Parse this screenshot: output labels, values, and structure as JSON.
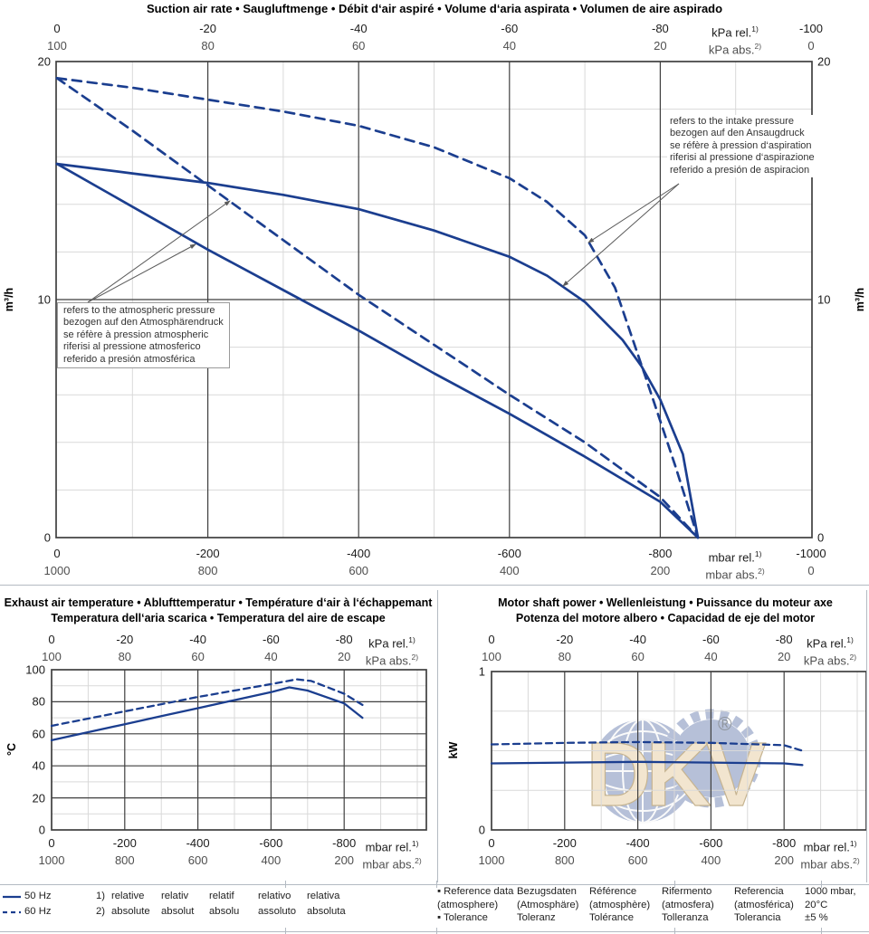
{
  "page": {
    "colors": {
      "curve": "#1b3e8f",
      "grid_light": "#d9d9d9",
      "grid_dark": "#3f3f3f",
      "separator": "#b3bac2",
      "arrow": "#5a5a5a",
      "watermark_blue": "#b6c0d8",
      "watermark_cream": "#f2e5cf",
      "watermark_outline": "#c6b491",
      "registered_gray": "#8f959d"
    },
    "legend": {
      "frequencies": [
        {
          "style": "solid",
          "label": "50 Hz"
        },
        {
          "style": "dashed",
          "label": "60 Hz"
        }
      ],
      "footnotes": [
        {
          "num": "1)",
          "terms": [
            "relative",
            "relativ",
            "relatif",
            "relativo",
            "relativa"
          ]
        },
        {
          "num": "2)",
          "terms": [
            "absolute",
            "absolut",
            "absolu",
            "assoluto",
            "absoluta"
          ]
        }
      ],
      "reference_columns": [
        {
          "bullet": true,
          "lines": [
            "Reference data",
            "(atmosphere)",
            "Tolerance"
          ]
        },
        {
          "bullet": false,
          "lines": [
            "Bezugsdaten",
            "(Atmosphäre)",
            "Toleranz"
          ]
        },
        {
          "bullet": false,
          "lines": [
            "Référence",
            "(atmosphère)",
            "Tolérance"
          ]
        },
        {
          "bullet": false,
          "lines": [
            "Rifermento",
            "(atmosfera)",
            "Tolleranza"
          ]
        },
        {
          "bullet": false,
          "lines": [
            "Referencia",
            "(atmosférica)",
            "Tolerancia"
          ]
        },
        {
          "bullet": false,
          "lines": [
            "1000 mbar,",
            "20°C",
            "±5 %"
          ]
        }
      ]
    },
    "watermark": {
      "text": "DKV",
      "registered": "®"
    }
  },
  "chart_data": [
    {
      "type": "line",
      "title": "Suction air rate  •  Saugluftmenge  •  Débit d‘air aspiré  •  Volume d‘aria aspirata  •  Volumen de aire aspirado",
      "title2": "",
      "x_axis_top": {
        "ticks": [
          0,
          -20,
          -40,
          -60,
          -80
        ],
        "end": -100,
        "unit": "kPa rel.",
        "unit_sup": "1)"
      },
      "x_axis_top_abs": {
        "ticks": [
          100,
          80,
          60,
          40,
          20
        ],
        "end": 0,
        "unit": "kPa abs.",
        "unit_sup": "2)"
      },
      "x_axis_bottom": {
        "ticks": [
          0,
          -200,
          -400,
          -600,
          -800
        ],
        "end": -1000,
        "unit": "mbar rel.",
        "unit_sup": "1)"
      },
      "x_axis_bottom_abs": {
        "ticks": [
          1000,
          800,
          600,
          400,
          200
        ],
        "end": 0,
        "unit": "mbar abs.",
        "unit_sup": "2)"
      },
      "y_axis": {
        "label": "m³/h",
        "ticks": [
          20,
          10,
          0
        ],
        "min": 0,
        "max": 20,
        "dual_side": true
      },
      "x_range_mbar": [
        0,
        -1000
      ],
      "series": [
        {
          "name": "50 Hz — refers to the atmospheric pressure",
          "style": "solid",
          "points": [
            [
              0,
              15.7
            ],
            [
              -100,
              13.9
            ],
            [
              -200,
              12.1
            ],
            [
              -300,
              10.4
            ],
            [
              -400,
              8.7
            ],
            [
              -500,
              6.9
            ],
            [
              -600,
              5.2
            ],
            [
              -700,
              3.4
            ],
            [
              -800,
              1.5
            ],
            [
              -850,
              0
            ]
          ]
        },
        {
          "name": "50 Hz — refers to the intake pressure",
          "style": "solid",
          "points": [
            [
              0,
              15.7
            ],
            [
              -100,
              15.3
            ],
            [
              -200,
              14.9
            ],
            [
              -300,
              14.4
            ],
            [
              -400,
              13.8
            ],
            [
              -500,
              12.9
            ],
            [
              -600,
              11.8
            ],
            [
              -650,
              11.0
            ],
            [
              -700,
              9.9
            ],
            [
              -750,
              8.3
            ],
            [
              -775,
              7.2
            ],
            [
              -800,
              5.8
            ],
            [
              -830,
              3.5
            ],
            [
              -850,
              0
            ]
          ]
        },
        {
          "name": "60 Hz — refers to the atmospheric pressure",
          "style": "dashed",
          "points": [
            [
              0,
              19.3
            ],
            [
              -100,
              17.1
            ],
            [
              -200,
              14.8
            ],
            [
              -300,
              12.5
            ],
            [
              -400,
              10.2
            ],
            [
              -500,
              8.1
            ],
            [
              -600,
              6.0
            ],
            [
              -700,
              4.0
            ],
            [
              -800,
              1.7
            ],
            [
              -850,
              0
            ]
          ]
        },
        {
          "name": "60 Hz — refers to the intake pressure",
          "style": "dashed",
          "points": [
            [
              0,
              19.3
            ],
            [
              -100,
              18.9
            ],
            [
              -200,
              18.4
            ],
            [
              -300,
              17.9
            ],
            [
              -400,
              17.3
            ],
            [
              -500,
              16.4
            ],
            [
              -600,
              15.1
            ],
            [
              -650,
              14.1
            ],
            [
              -700,
              12.7
            ],
            [
              -740,
              10.5
            ],
            [
              -780,
              6.8
            ],
            [
              -820,
              3.0
            ],
            [
              -850,
              0
            ]
          ]
        }
      ],
      "annotations": [
        {
          "id": "intake",
          "lines": [
            "refers to the intake pressure",
            "bezogen auf den Ansaugdruck",
            "se réfère à pression d‘aspiration",
            "riferisi al pressione d‘aspirazione",
            "referido a presión de aspiracion"
          ]
        },
        {
          "id": "atmospheric",
          "lines": [
            "refers to the atmospheric pressure",
            "bezogen auf den Atmosphärendruck",
            "se réfère à pression atmospheric",
            "riferisi al pressione atmosferico",
            "referido a presión atmosférica"
          ]
        }
      ]
    },
    {
      "type": "line",
      "title": "Exhaust air temperature  •  Ablufttemperatur  •  Température d‘air à l‘échappemant",
      "title2": "Temperatura dell‘aria scarica  •  Temperatura del aire de escape",
      "x_axis_top": {
        "ticks": [
          0,
          -20,
          -40,
          -60,
          -80
        ],
        "end": null,
        "unit": "kPa rel.",
        "unit_sup": "1)"
      },
      "x_axis_top_abs": {
        "ticks": [
          100,
          80,
          60,
          40,
          20
        ],
        "end": null,
        "unit": "kPa abs.",
        "unit_sup": "2)"
      },
      "x_axis_bottom": {
        "ticks": [
          0,
          -200,
          -400,
          -600,
          -800
        ],
        "end": null,
        "unit": "mbar rel.",
        "unit_sup": "1)"
      },
      "x_axis_bottom_abs": {
        "ticks": [
          1000,
          800,
          600,
          400,
          200
        ],
        "end": null,
        "unit": "mbar abs.",
        "unit_sup": "2)"
      },
      "y_axis": {
        "label": "°C",
        "ticks": [
          100,
          80,
          60,
          40,
          20,
          0
        ],
        "min": 0,
        "max": 100,
        "dual_side": false
      },
      "x_range_mbar": [
        0,
        -1000
      ],
      "series": [
        {
          "name": "50 Hz",
          "style": "solid",
          "points": [
            [
              0,
              56
            ],
            [
              -100,
              61
            ],
            [
              -200,
              66
            ],
            [
              -300,
              71
            ],
            [
              -400,
              76
            ],
            [
              -500,
              81
            ],
            [
              -600,
              86
            ],
            [
              -650,
              89
            ],
            [
              -700,
              87
            ],
            [
              -800,
              79
            ],
            [
              -850,
              70
            ]
          ]
        },
        {
          "name": "60 Hz",
          "style": "dashed",
          "points": [
            [
              0,
              65
            ],
            [
              -100,
              69.5
            ],
            [
              -200,
              74
            ],
            [
              -300,
              78.5
            ],
            [
              -400,
              83
            ],
            [
              -500,
              87
            ],
            [
              -600,
              91
            ],
            [
              -670,
              94
            ],
            [
              -710,
              93
            ],
            [
              -800,
              85
            ],
            [
              -850,
              78
            ]
          ]
        }
      ],
      "annotations": []
    },
    {
      "type": "line",
      "title": "Motor shaft power  •  Wellenleistung  •  Puissance du moteur axe",
      "title2": "Potenza del motore albero  •  Capacidad de eje del motor",
      "x_axis_top": {
        "ticks": [
          0,
          -20,
          -40,
          -60,
          -80
        ],
        "end": null,
        "unit": "kPa rel.",
        "unit_sup": "1)"
      },
      "x_axis_top_abs": {
        "ticks": [
          100,
          80,
          60,
          40,
          20
        ],
        "end": null,
        "unit": "kPa abs.",
        "unit_sup": "2)"
      },
      "x_axis_bottom": {
        "ticks": [
          0,
          -200,
          -400,
          -600,
          -800
        ],
        "end": null,
        "unit": "mbar rel.",
        "unit_sup": "1)"
      },
      "x_axis_bottom_abs": {
        "ticks": [
          1000,
          800,
          600,
          400,
          200
        ],
        "end": null,
        "unit": "mbar abs.",
        "unit_sup": "2)"
      },
      "y_axis": {
        "label": "kW",
        "ticks": [
          1,
          0
        ],
        "min": 0,
        "max": 1,
        "dual_side": false
      },
      "x_range_mbar": [
        0,
        -1000
      ],
      "series": [
        {
          "name": "50 Hz",
          "style": "solid",
          "points": [
            [
              0,
              0.42
            ],
            [
              -200,
              0.425
            ],
            [
              -400,
              0.43
            ],
            [
              -600,
              0.425
            ],
            [
              -800,
              0.42
            ],
            [
              -850,
              0.41
            ]
          ]
        },
        {
          "name": "60 Hz",
          "style": "dashed",
          "points": [
            [
              0,
              0.54
            ],
            [
              -200,
              0.55
            ],
            [
              -400,
              0.555
            ],
            [
              -600,
              0.55
            ],
            [
              -800,
              0.535
            ],
            [
              -850,
              0.5
            ]
          ]
        }
      ],
      "annotations": []
    }
  ]
}
